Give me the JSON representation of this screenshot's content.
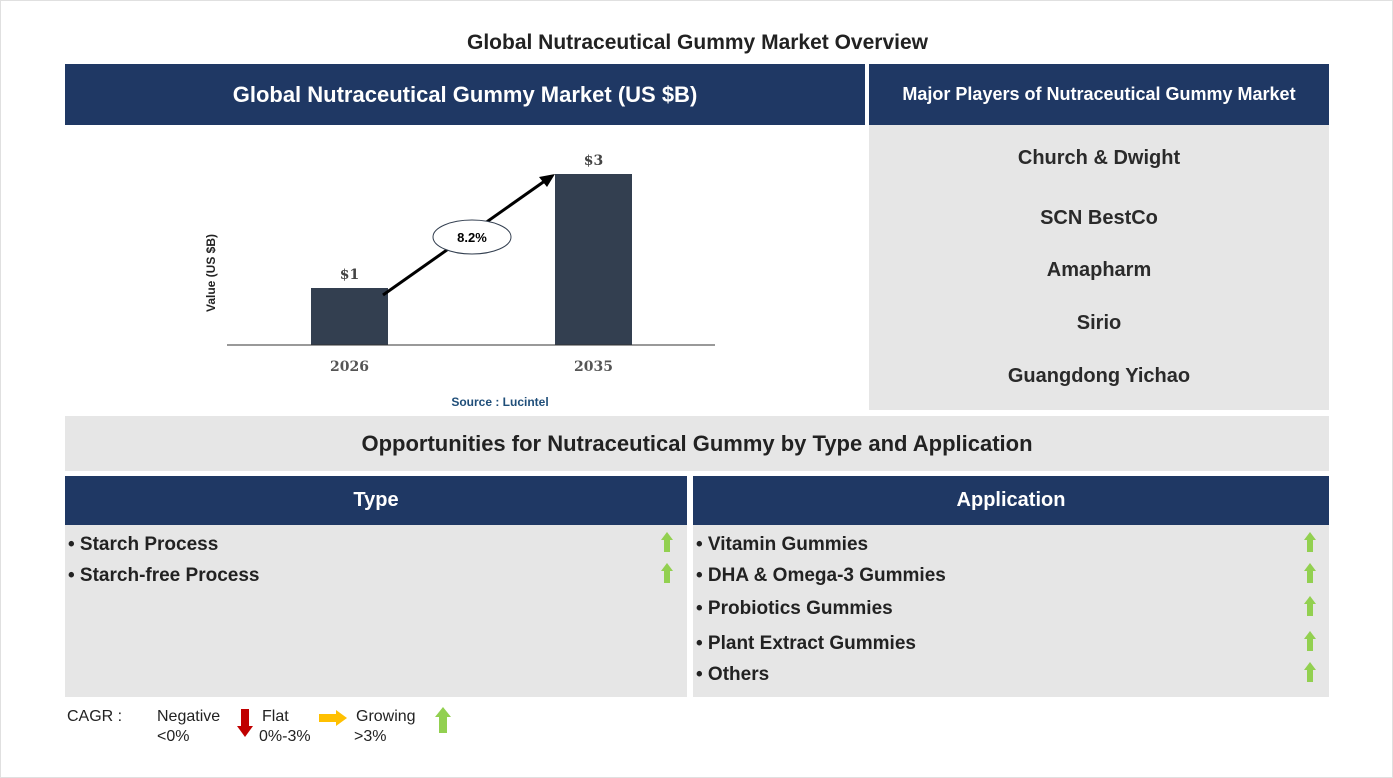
{
  "page_title": "Global Nutraceutical Gummy Market Overview",
  "market_panel": {
    "title": "Global Nutraceutical Gummy Market (US $B)",
    "source": "Source : Lucintel"
  },
  "chart_data": {
    "type": "bar",
    "title": "Global Nutraceutical Gummy Market (US $B)",
    "ylabel": "Value (US $B)",
    "xlabel": "",
    "categories": [
      "2026",
      "2035"
    ],
    "values": [
      1,
      3
    ],
    "data_labels": [
      "$1",
      "$3"
    ],
    "annotation": "8.2%",
    "bar_color": "#333f50",
    "grid": false,
    "ylim": [
      0,
      3.2
    ]
  },
  "players": {
    "title": "Major Players of Nutraceutical Gummy Market",
    "items": [
      "Church & Dwight",
      "SCN BestCo",
      "Amapharm",
      "Sirio",
      "Guangdong Yichao"
    ]
  },
  "opportunities": {
    "title": "Opportunities for Nutraceutical Gummy by Type and Application",
    "type": {
      "header": "Type",
      "items": [
        {
          "label": "• Starch Process",
          "trend": "growing"
        },
        {
          "label": "• Starch-free Process",
          "trend": "growing"
        }
      ]
    },
    "application": {
      "header": "Application",
      "items": [
        {
          "label": "• Vitamin Gummies",
          "trend": "growing"
        },
        {
          "label": "• DHA & Omega-3 Gummies",
          "trend": "growing"
        },
        {
          "label": "• Probiotics Gummies",
          "trend": "growing"
        },
        {
          "label": "• Plant Extract Gummies",
          "trend": "growing"
        },
        {
          "label": "• Others",
          "trend": "growing"
        }
      ]
    }
  },
  "legend": {
    "label": "CAGR  :",
    "negative": "Negative",
    "negative_range": "<0%",
    "flat": "Flat",
    "flat_range": "0%-3%",
    "growing": "Growing",
    "growing_range": ">3%"
  },
  "colors": {
    "navy": "#1f3864",
    "bar": "#333f50",
    "growing": "#92d050",
    "flat": "#ffc000",
    "negative": "#c00000"
  }
}
